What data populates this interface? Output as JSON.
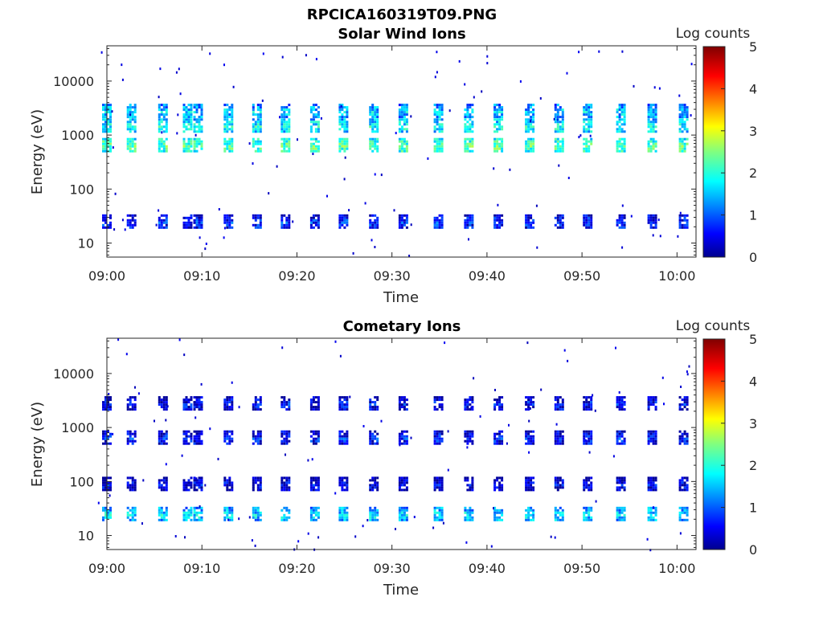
{
  "figure": {
    "filename_title": "RPCICA160319T09.PNG"
  },
  "colorbar": {
    "label": "Log counts",
    "ticks": [
      "0",
      "1",
      "2",
      "3",
      "4",
      "5"
    ],
    "range": [
      0,
      5
    ],
    "colormap": "jet"
  },
  "chart_data": [
    {
      "type": "heatmap",
      "title": "Solar Wind Ions",
      "xlabel": "Time",
      "ylabel": "Energy (eV)",
      "x_range": [
        "09:00",
        "10:02"
      ],
      "xtick_labels": [
        "09:00",
        "09:10",
        "09:20",
        "09:30",
        "09:40",
        "09:50",
        "10:00"
      ],
      "ylim": [
        5.5,
        45000
      ],
      "yscale": "log",
      "ytick_labels": [
        "10",
        "100",
        "1000",
        "10000"
      ],
      "sweep_times_min": [
        0,
        2.6,
        5.9,
        8.5,
        9.6,
        12.8,
        15.8,
        18.8,
        21.9,
        24.9,
        28.1,
        31.2,
        34.9,
        38.1,
        41.2,
        44.5,
        47.6,
        50.6,
        54.1,
        57.4,
        60.7
      ],
      "bands": [
        {
          "energy_ev": 2800,
          "log_counts": 1.6
        },
        {
          "energy_ev": 1500,
          "log_counts": 1.9
        },
        {
          "energy_ev": 650,
          "log_counts": 2.3
        },
        {
          "energy_ev": 25,
          "log_counts": 0.8
        }
      ]
    },
    {
      "type": "heatmap",
      "title": "Cometary Ions",
      "xlabel": "Time",
      "ylabel": "Energy (eV)",
      "x_range": [
        "09:00",
        "10:02"
      ],
      "xtick_labels": [
        "09:00",
        "09:10",
        "09:20",
        "09:30",
        "09:40",
        "09:50",
        "10:00"
      ],
      "ylim": [
        5.5,
        45000
      ],
      "yscale": "log",
      "ytick_labels": [
        "10",
        "100",
        "1000",
        "10000"
      ],
      "sweep_times_min": [
        0,
        2.6,
        5.9,
        8.5,
        9.6,
        12.8,
        15.8,
        18.8,
        21.9,
        24.9,
        28.1,
        31.2,
        34.9,
        38.1,
        41.2,
        44.5,
        47.6,
        50.6,
        54.1,
        57.4,
        60.7
      ],
      "bands": [
        {
          "energy_ev": 2800,
          "log_counts": 0.6
        },
        {
          "energy_ev": 650,
          "log_counts": 0.7
        },
        {
          "energy_ev": 90,
          "log_counts": 0.5
        },
        {
          "energy_ev": 25,
          "log_counts": 1.7
        }
      ]
    }
  ]
}
